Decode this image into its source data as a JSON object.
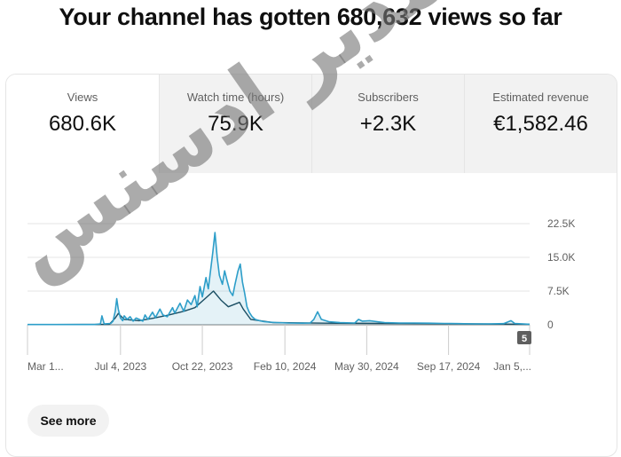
{
  "headline": "Your channel has gotten 680,632 views so far",
  "tabs": [
    {
      "label": "Views",
      "value": "680.6K"
    },
    {
      "label": "Watch time (hours)",
      "value": "75.9K"
    },
    {
      "label": "Subscribers",
      "value": "+2.3K"
    },
    {
      "label": "Estimated revenue",
      "value": "€1,582.46"
    }
  ],
  "chart_data": {
    "type": "line",
    "title": "",
    "xlabel": "",
    "ylabel": "",
    "ylim": [
      0,
      22500
    ],
    "y_ticks": [
      0,
      7500,
      15000,
      22500
    ],
    "y_tick_labels": [
      "0",
      "7.5K",
      "15.0K",
      "22.5K"
    ],
    "x_tick_labels": [
      "Mar 1...",
      "Jul 4, 2023",
      "Oct 22, 2023",
      "Feb 10, 2024",
      "May 30, 2024",
      "Sep 17, 2024",
      "Jan 5,..."
    ],
    "x_tick_days": [
      0,
      125,
      235,
      346,
      456,
      566,
      675
    ],
    "grid": true,
    "badge": "5",
    "series": [
      {
        "points": [
          [
            0,
            50
          ],
          [
            90,
            60
          ],
          [
            98,
            200
          ],
          [
            100,
            2000
          ],
          [
            103,
            200
          ],
          [
            112,
            300
          ],
          [
            115,
            800
          ],
          [
            118,
            3000
          ],
          [
            120,
            5800
          ],
          [
            122,
            3500
          ],
          [
            125,
            1500
          ],
          [
            128,
            900
          ],
          [
            130,
            2000
          ],
          [
            134,
            1200
          ],
          [
            138,
            1800
          ],
          [
            142,
            800
          ],
          [
            146,
            1500
          ],
          [
            150,
            1200
          ],
          [
            155,
            800
          ],
          [
            158,
            2200
          ],
          [
            162,
            1200
          ],
          [
            168,
            2800
          ],
          [
            172,
            1600
          ],
          [
            178,
            3500
          ],
          [
            182,
            2200
          ],
          [
            188,
            1800
          ],
          [
            195,
            3800
          ],
          [
            198,
            2600
          ],
          [
            205,
            4800
          ],
          [
            210,
            3000
          ],
          [
            215,
            5500
          ],
          [
            220,
            4500
          ],
          [
            225,
            6500
          ],
          [
            228,
            4000
          ],
          [
            232,
            8500
          ],
          [
            235,
            6200
          ],
          [
            240,
            10500
          ],
          [
            243,
            8000
          ],
          [
            246,
            12000
          ],
          [
            249,
            16000
          ],
          [
            252,
            20500
          ],
          [
            255,
            15000
          ],
          [
            258,
            11000
          ],
          [
            262,
            9000
          ],
          [
            265,
            12000
          ],
          [
            268,
            10000
          ],
          [
            272,
            7500
          ],
          [
            276,
            6500
          ],
          [
            279,
            9000
          ],
          [
            283,
            12000
          ],
          [
            286,
            13500
          ],
          [
            289,
            9500
          ],
          [
            292,
            7000
          ],
          [
            295,
            4000
          ],
          [
            298,
            2800
          ],
          [
            302,
            1800
          ],
          [
            306,
            1200
          ],
          [
            312,
            900
          ],
          [
            318,
            700
          ],
          [
            325,
            600
          ],
          [
            335,
            500
          ],
          [
            350,
            400
          ],
          [
            370,
            350
          ],
          [
            380,
            400
          ],
          [
            385,
            1200
          ],
          [
            390,
            2900
          ],
          [
            395,
            1200
          ],
          [
            405,
            700
          ],
          [
            420,
            500
          ],
          [
            440,
            400
          ],
          [
            445,
            1200
          ],
          [
            450,
            800
          ],
          [
            460,
            900
          ],
          [
            470,
            700
          ],
          [
            480,
            500
          ],
          [
            500,
            400
          ],
          [
            520,
            400
          ],
          [
            540,
            350
          ],
          [
            560,
            300
          ],
          [
            580,
            250
          ],
          [
            600,
            200
          ],
          [
            620,
            200
          ],
          [
            640,
            250
          ],
          [
            650,
            900
          ],
          [
            655,
            300
          ],
          [
            675,
            120
          ]
        ]
      },
      {
        "points": [
          [
            0,
            30
          ],
          [
            110,
            100
          ],
          [
            118,
            1500
          ],
          [
            122,
            2500
          ],
          [
            130,
            1200
          ],
          [
            150,
            900
          ],
          [
            170,
            1500
          ],
          [
            190,
            2200
          ],
          [
            210,
            3000
          ],
          [
            225,
            3800
          ],
          [
            240,
            6000
          ],
          [
            250,
            7500
          ],
          [
            260,
            5500
          ],
          [
            270,
            4000
          ],
          [
            285,
            5000
          ],
          [
            290,
            3500
          ],
          [
            300,
            1200
          ],
          [
            330,
            500
          ],
          [
            400,
            350
          ],
          [
            500,
            300
          ],
          [
            600,
            200
          ],
          [
            675,
            100
          ]
        ]
      }
    ]
  }
}
